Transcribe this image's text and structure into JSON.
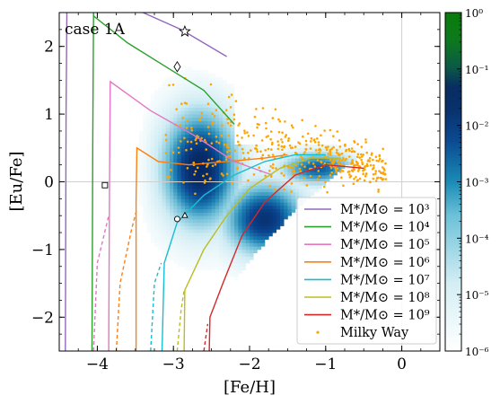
{
  "chart_data": {
    "type": "scatter",
    "annotation": "case 1A",
    "xlabel": "[Fe/H]",
    "ylabel": "[Eu/Fe]",
    "xlim": [
      -4.5,
      0.5
    ],
    "ylim": [
      -2.5,
      2.5
    ],
    "xticks": [
      -4,
      -3,
      -2,
      -1,
      0
    ],
    "xtick_labels": [
      "−4",
      "−3",
      "−2",
      "−1",
      "0"
    ],
    "yticks": [
      -2,
      -1,
      0,
      1,
      2
    ],
    "ytick_labels": [
      "−2",
      "−1",
      "0",
      "1",
      "2"
    ],
    "reference_lines": {
      "x": 0,
      "y": 0
    },
    "colorbar": {
      "scale": "log",
      "range": [
        1e-06,
        1
      ],
      "ticks": [
        {
          "value": 1,
          "label": "10⁰"
        },
        {
          "value": 0.1,
          "label": "10⁻¹"
        },
        {
          "value": 0.01,
          "label": "10⁻²"
        },
        {
          "value": 0.001,
          "label": "10⁻³"
        },
        {
          "value": 0.0001,
          "label": "10⁻⁴"
        },
        {
          "value": 1e-05,
          "label": "10⁻⁵"
        },
        {
          "value": 1e-06,
          "label": "10⁻⁶"
        }
      ]
    },
    "legend_position": "lower-right",
    "series": [
      {
        "name": "M*/M⊙ = 10³",
        "color": "#9467bd",
        "solid": [
          [
            -4.42,
            -2.5
          ],
          [
            -4.41,
            1.0
          ],
          [
            -4.4,
            2.5
          ]
        ],
        "dashed": [],
        "top": [
          [
            -3.4,
            2.5
          ],
          [
            -2.9,
            2.25
          ],
          [
            -2.3,
            1.85
          ]
        ]
      },
      {
        "name": "M*/M⊙ = 10⁴",
        "color": "#2ca02c",
        "solid": [
          [
            -4.07,
            -2.5
          ],
          [
            -4.06,
            0.5
          ],
          [
            -4.05,
            2.5
          ]
        ],
        "dashed": [],
        "top": [
          [
            -4.05,
            2.45
          ],
          [
            -3.6,
            2.05
          ],
          [
            -3.1,
            1.7
          ],
          [
            -2.6,
            1.35
          ],
          [
            -2.2,
            0.85
          ]
        ]
      },
      {
        "name": "M*/M⊙ = 10⁵",
        "color": "#e377c2",
        "solid": [
          [
            -3.85,
            -2.5
          ],
          [
            -3.84,
            0.0
          ],
          [
            -3.83,
            1.48
          ],
          [
            -3.3,
            1.05
          ],
          [
            -2.75,
            0.7
          ],
          [
            -2.2,
            0.3
          ],
          [
            -1.7,
            0.1
          ]
        ],
        "dashed": [
          [
            -4.05,
            -2.5
          ],
          [
            -4.0,
            -1.2
          ],
          [
            -3.85,
            -0.5
          ]
        ],
        "top": []
      },
      {
        "name": "M*/M⊙ = 10⁶",
        "color": "#ff7f0e",
        "solid": [
          [
            -3.49,
            -2.5
          ],
          [
            -3.49,
            -0.3
          ],
          [
            -3.48,
            0.5
          ],
          [
            -3.2,
            0.3
          ],
          [
            -2.8,
            0.25
          ],
          [
            -2.3,
            0.3
          ],
          [
            -1.8,
            0.35
          ],
          [
            -1.5,
            0.4
          ]
        ],
        "dashed": [
          [
            -3.75,
            -2.5
          ],
          [
            -3.7,
            -1.5
          ],
          [
            -3.55,
            -0.7
          ],
          [
            -3.48,
            -0.4
          ]
        ],
        "top": []
      },
      {
        "name": "M*/M⊙ = 10⁷",
        "color": "#17becf",
        "solid": [
          [
            -3.15,
            -2.5
          ],
          [
            -3.12,
            -1.2
          ],
          [
            -2.95,
            -0.6
          ],
          [
            -2.6,
            -0.2
          ],
          [
            -2.2,
            0.1
          ],
          [
            -1.8,
            0.3
          ],
          [
            -1.4,
            0.4
          ],
          [
            -1.0,
            0.4
          ]
        ],
        "dashed": [
          [
            -3.3,
            -2.5
          ],
          [
            -3.25,
            -1.5
          ],
          [
            -3.16,
            -1.2
          ]
        ],
        "top": []
      },
      {
        "name": "M*/M⊙ = 10⁸",
        "color": "#bcbd22",
        "solid": [
          [
            -2.86,
            -2.5
          ],
          [
            -2.85,
            -1.6
          ],
          [
            -2.6,
            -1.0
          ],
          [
            -2.3,
            -0.5
          ],
          [
            -2.0,
            -0.1
          ],
          [
            -1.6,
            0.2
          ],
          [
            -1.2,
            0.35
          ],
          [
            -0.8,
            0.35
          ]
        ],
        "dashed": [
          [
            -2.95,
            -2.5
          ],
          [
            -2.9,
            -1.9
          ],
          [
            -2.86,
            -1.6
          ]
        ],
        "top": []
      },
      {
        "name": "M*/M⊙ = 10⁹",
        "color": "#d62728",
        "solid": [
          [
            -2.53,
            -2.5
          ],
          [
            -2.52,
            -2.0
          ],
          [
            -2.35,
            -1.5
          ],
          [
            -2.1,
            -0.8
          ],
          [
            -1.8,
            -0.3
          ],
          [
            -1.4,
            0.1
          ],
          [
            -1.0,
            0.25
          ],
          [
            -0.5,
            0.2
          ]
        ],
        "dashed": [
          [
            -2.6,
            -2.5
          ],
          [
            -2.55,
            -2.1
          ]
        ],
        "top": []
      },
      {
        "name": "Milky Way",
        "color": "#ffa500",
        "marker": "dot"
      }
    ],
    "markers": [
      {
        "shape": "star",
        "x": -2.85,
        "y": 2.22
      },
      {
        "shape": "diamond",
        "x": -2.95,
        "y": 1.7
      },
      {
        "shape": "square",
        "x": -3.9,
        "y": -0.05
      },
      {
        "shape": "circle",
        "x": -2.95,
        "y": -0.55
      },
      {
        "shape": "triangle",
        "x": -2.85,
        "y": -0.5
      }
    ]
  }
}
